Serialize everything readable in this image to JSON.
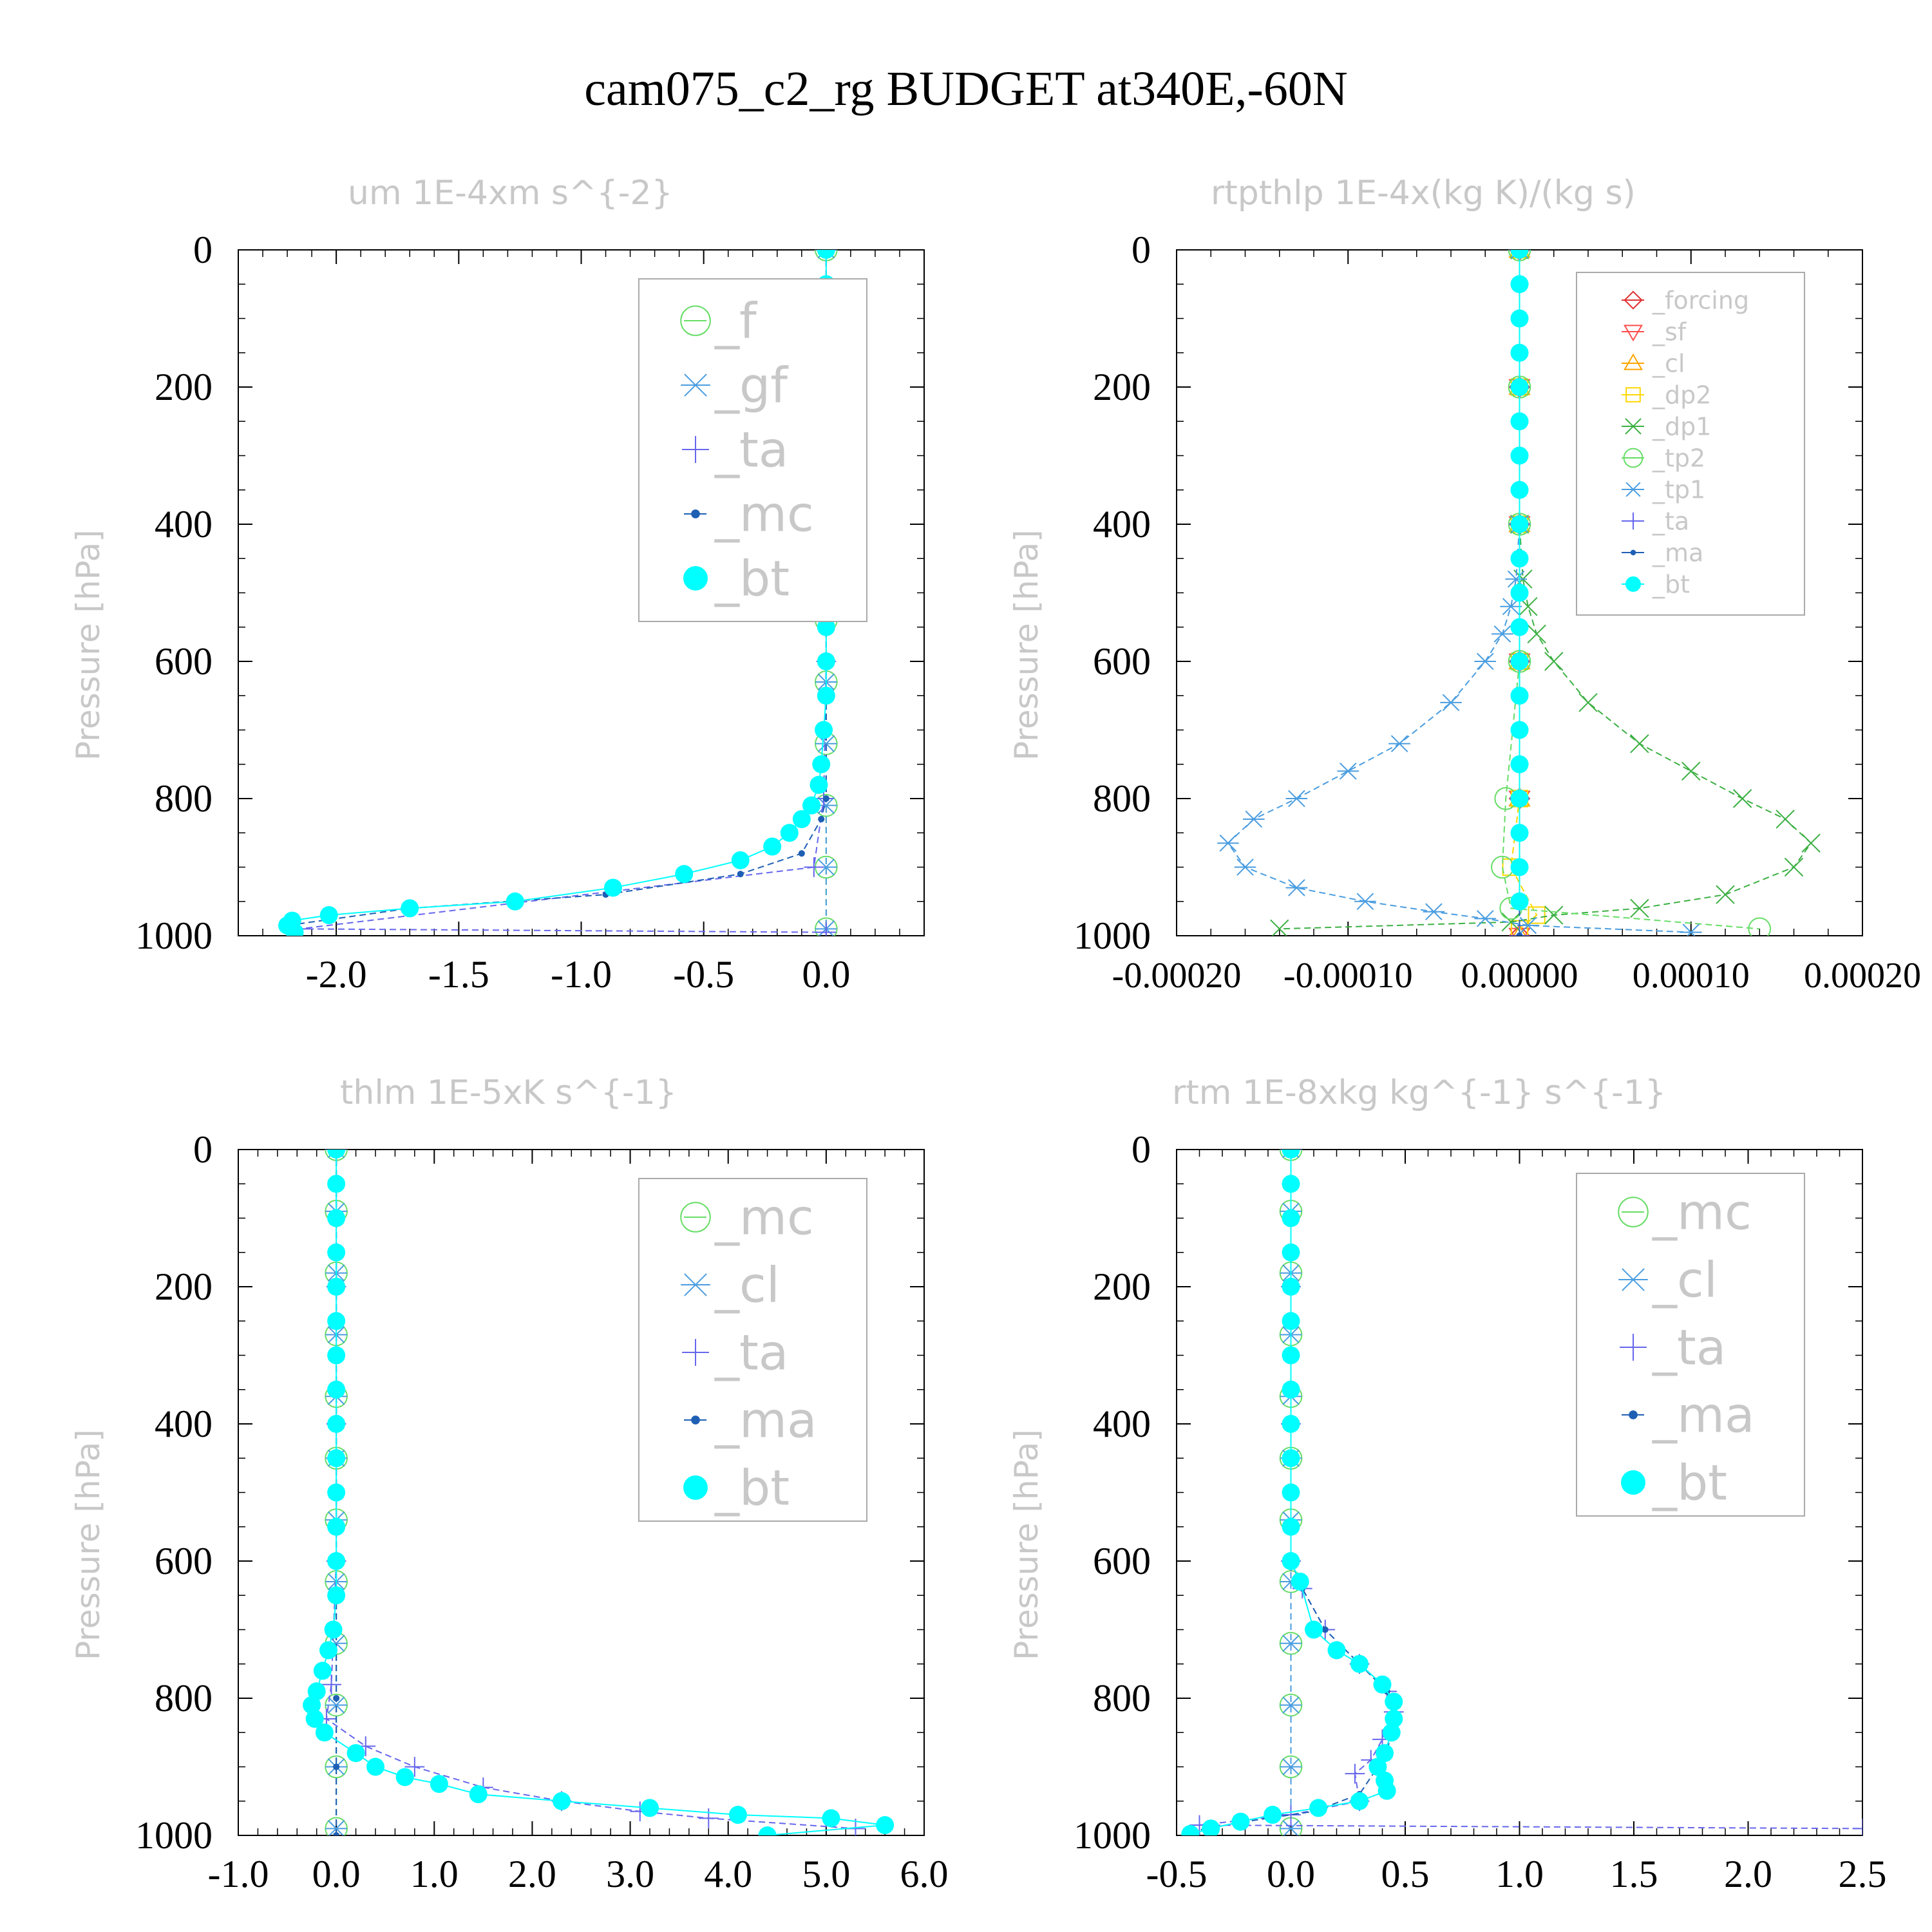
{
  "title": "cam075_c2_rg  BUDGET at340E,-60N",
  "chart_data": [
    {
      "type": "line",
      "title": "um   1E-4xm s^{-2}",
      "ylabel": "Pressure [hPa]",
      "xlim": [
        -2.4,
        0.4
      ],
      "ylim": [
        1000,
        0
      ],
      "xticks": [
        "-2.0",
        "-1.5",
        "-1.0",
        "-0.5",
        "0.0"
      ],
      "xtick_values": [
        -2.0,
        -1.5,
        -1.0,
        -0.5,
        0.0
      ],
      "yticks": [
        "0",
        "200",
        "400",
        "600",
        "800",
        "1000"
      ],
      "legend_position": "top-right",
      "series": [
        {
          "name": "_f",
          "color": "#66dd66",
          "marker": "circle-open",
          "x": [
            0,
            0,
            0,
            0,
            0,
            0,
            0,
            0,
            0,
            0,
            0,
            0
          ],
          "y": [
            0,
            90,
            180,
            270,
            360,
            450,
            540,
            630,
            720,
            810,
            900,
            990
          ]
        },
        {
          "name": "_gf",
          "color": "#4a9de0",
          "marker": "star",
          "x": [
            0,
            0,
            0,
            0,
            0,
            0,
            0,
            0,
            0,
            0,
            0,
            0
          ],
          "y": [
            0,
            90,
            180,
            270,
            360,
            450,
            540,
            630,
            720,
            810,
            900,
            990
          ]
        },
        {
          "name": "_ta",
          "color": "#6666ee",
          "marker": "plus",
          "x": [
            0,
            0,
            0,
            0,
            -0.01,
            -0.05,
            -2.15,
            0
          ],
          "y": [
            0,
            200,
            400,
            600,
            800,
            900,
            990,
            995
          ]
        },
        {
          "name": "_mc",
          "color": "#1e5fb4",
          "marker": "dot",
          "x": [
            0,
            0,
            0,
            0,
            0,
            -0.02,
            -0.1,
            -0.35,
            -0.9,
            -1.7,
            -2.2
          ],
          "y": [
            0,
            200,
            400,
            600,
            800,
            830,
            880,
            910,
            940,
            960,
            985
          ]
        },
        {
          "name": "_bt",
          "color": "#00ffff",
          "marker": "dot-large",
          "x": [
            0,
            0,
            0,
            0,
            0,
            0,
            0,
            0,
            0,
            0,
            0,
            0,
            0,
            0,
            -0.01,
            -0.02,
            -0.03,
            -0.06,
            -0.1,
            -0.15,
            -0.22,
            -0.35,
            -0.58,
            -0.87,
            -1.27,
            -1.7,
            -2.03,
            -2.18,
            -2.2,
            -2.17
          ],
          "y": [
            0,
            50,
            100,
            150,
            200,
            250,
            300,
            350,
            400,
            450,
            500,
            550,
            600,
            650,
            700,
            750,
            780,
            810,
            830,
            850,
            870,
            890,
            910,
            930,
            950,
            960,
            970,
            978,
            985,
            995
          ]
        }
      ]
    },
    {
      "type": "line",
      "title": "rtpthlp   1E-4x(kg K)/(kg s)",
      "ylabel": "Pressure [hPa]",
      "xlim": [
        -0.0002,
        0.0002
      ],
      "ylim": [
        1000,
        0
      ],
      "xticks": [
        "-0.00020",
        "-0.00010",
        "0.00000",
        "0.00010",
        "0.00020"
      ],
      "xtick_values": [
        -0.0002,
        -0.0001,
        0.0,
        0.0001,
        0.0002
      ],
      "yticks": [
        "0",
        "200",
        "400",
        "600",
        "800",
        "1000"
      ],
      "legend_position": "top-right",
      "series": [
        {
          "name": "_forcing",
          "color": "#e03030",
          "marker": "diamond",
          "x": [
            0,
            0,
            0,
            0,
            0,
            0
          ],
          "y": [
            0,
            200,
            400,
            600,
            800,
            1000
          ]
        },
        {
          "name": "_sf",
          "color": "#ff4d4d",
          "marker": "triangle-down",
          "x": [
            0,
            0,
            0,
            0,
            0,
            0
          ],
          "y": [
            0,
            200,
            400,
            600,
            800,
            1000
          ]
        },
        {
          "name": "_cl",
          "color": "#ffa500",
          "marker": "triangle-up",
          "x": [
            0,
            0,
            0,
            0,
            0,
            0
          ],
          "y": [
            0,
            200,
            400,
            600,
            800,
            1000
          ]
        },
        {
          "name": "_dp2",
          "color": "#ffd700",
          "marker": "square",
          "x": [
            0,
            0,
            0,
            0,
            0,
            -5e-06,
            1e-05,
            0
          ],
          "y": [
            0,
            200,
            400,
            600,
            800,
            900,
            970,
            990
          ]
        },
        {
          "name": "_dp1",
          "color": "#3cb043",
          "marker": "x",
          "x": [
            0,
            0,
            2e-06,
            5e-06,
            1e-05,
            2e-05,
            4e-05,
            7e-05,
            0.0001,
            0.00013,
            0.000155,
            0.00017,
            0.00016,
            0.00012,
            7e-05,
            2e-05,
            -5e-06,
            -0.00014
          ],
          "y": [
            0,
            400,
            480,
            520,
            560,
            600,
            660,
            720,
            760,
            800,
            830,
            865,
            900,
            940,
            960,
            970,
            980,
            990
          ]
        },
        {
          "name": "_tp2",
          "color": "#66dd66",
          "marker": "circle-open",
          "x": [
            0,
            0,
            0,
            0,
            -8e-06,
            -1e-05,
            -5e-06,
            0.00014
          ],
          "y": [
            0,
            200,
            400,
            600,
            800,
            900,
            960,
            990
          ]
        },
        {
          "name": "_tp1",
          "color": "#4a9de0",
          "marker": "star",
          "x": [
            0,
            0,
            -2e-06,
            -5e-06,
            -1e-05,
            -2e-05,
            -4e-05,
            -7e-05,
            -0.0001,
            -0.00013,
            -0.000155,
            -0.00017,
            -0.00016,
            -0.00013,
            -9e-05,
            -5e-05,
            -2e-05,
            5e-06,
            0.0001
          ],
          "y": [
            0,
            400,
            480,
            520,
            560,
            600,
            660,
            720,
            760,
            800,
            830,
            865,
            900,
            930,
            950,
            965,
            975,
            985,
            995
          ]
        },
        {
          "name": "_ta",
          "color": "#6666ee",
          "marker": "plus",
          "x": [
            0,
            0,
            0,
            0,
            0,
            0
          ],
          "y": [
            0,
            200,
            400,
            600,
            800,
            1000
          ]
        },
        {
          "name": "_ma",
          "color": "#1e5fb4",
          "marker": "dot",
          "x": [
            0,
            0,
            0,
            0,
            0,
            0
          ],
          "y": [
            0,
            200,
            400,
            600,
            800,
            1000
          ]
        },
        {
          "name": "_bt",
          "color": "#00ffff",
          "marker": "dot-large",
          "x": [
            0,
            0,
            0,
            0,
            0,
            0,
            0,
            0,
            0,
            0,
            0,
            0,
            0,
            0,
            0,
            0,
            0,
            0,
            0,
            0
          ],
          "y": [
            0,
            50,
            100,
            150,
            200,
            250,
            300,
            350,
            400,
            450,
            500,
            550,
            600,
            650,
            700,
            750,
            800,
            850,
            900,
            950
          ]
        }
      ]
    },
    {
      "type": "line",
      "title": "thlm   1E-5xK s^{-1}",
      "ylabel": "Pressure [hPa]",
      "xlim": [
        -1.0,
        6.0
      ],
      "ylim": [
        1000,
        0
      ],
      "xticks": [
        "-1.0",
        "0.0",
        "1.0",
        "2.0",
        "3.0",
        "4.0",
        "5.0",
        "6.0"
      ],
      "xtick_values": [
        -1.0,
        0.0,
        1.0,
        2.0,
        3.0,
        4.0,
        5.0,
        6.0
      ],
      "yticks": [
        "0",
        "200",
        "400",
        "600",
        "800",
        "1000"
      ],
      "legend_position": "top-right",
      "series": [
        {
          "name": "_mc",
          "color": "#66dd66",
          "marker": "circle-open",
          "x": [
            0,
            0,
            0,
            0,
            0,
            0,
            0,
            0,
            0,
            0,
            0,
            0
          ],
          "y": [
            0,
            90,
            180,
            270,
            360,
            450,
            540,
            630,
            720,
            810,
            900,
            990
          ]
        },
        {
          "name": "_cl",
          "color": "#4a9de0",
          "marker": "star",
          "x": [
            0,
            0,
            0,
            0,
            0,
            0,
            0,
            0,
            0,
            0,
            0,
            0
          ],
          "y": [
            0,
            90,
            180,
            270,
            360,
            450,
            540,
            630,
            720,
            810,
            900,
            990
          ]
        },
        {
          "name": "_ta",
          "color": "#6666ee",
          "marker": "plus",
          "x": [
            0,
            0,
            0,
            0,
            -0.05,
            -0.1,
            0.3,
            0.8,
            1.5,
            2.3,
            3.1,
            3.8,
            5.3
          ],
          "y": [
            0,
            200,
            400,
            600,
            780,
            830,
            870,
            900,
            930,
            950,
            965,
            975,
            990
          ]
        },
        {
          "name": "_ma",
          "color": "#1e5fb4",
          "marker": "dot",
          "x": [
            0,
            0,
            0,
            0,
            0,
            0,
            0
          ],
          "y": [
            0,
            200,
            400,
            600,
            800,
            900,
            1000
          ]
        },
        {
          "name": "_bt",
          "color": "#00ffff",
          "marker": "dot-large",
          "x": [
            0,
            0,
            0,
            0,
            0,
            0,
            0,
            0,
            0,
            0,
            0,
            0,
            0,
            0,
            -0.03,
            -0.08,
            -0.14,
            -0.2,
            -0.25,
            -0.22,
            -0.12,
            0.2,
            0.4,
            0.7,
            1.05,
            1.45,
            2.3,
            3.2,
            4.1,
            5.05,
            5.6,
            4.4
          ],
          "y": [
            0,
            50,
            100,
            150,
            200,
            250,
            300,
            350,
            400,
            450,
            500,
            550,
            600,
            650,
            700,
            730,
            760,
            790,
            810,
            830,
            850,
            880,
            900,
            915,
            925,
            940,
            950,
            960,
            970,
            975,
            985,
            1000
          ]
        }
      ]
    },
    {
      "type": "line",
      "title": "rtm   1E-8xkg kg^{-1} s^{-1}",
      "ylabel": "Pressure [hPa]",
      "xlim": [
        -0.5,
        2.5
      ],
      "ylim": [
        1000,
        0
      ],
      "xticks": [
        "-0.5",
        "0.0",
        "0.5",
        "1.0",
        "1.5",
        "2.0",
        "2.5"
      ],
      "xtick_values": [
        -0.5,
        0.0,
        0.5,
        1.0,
        1.5,
        2.0,
        2.5
      ],
      "yticks": [
        "0",
        "200",
        "400",
        "600",
        "800",
        "1000"
      ],
      "legend_position": "top-right",
      "series": [
        {
          "name": "_mc",
          "color": "#66dd66",
          "marker": "circle-open",
          "x": [
            0,
            0,
            0,
            0,
            0,
            0,
            0,
            0,
            0,
            0,
            0,
            0
          ],
          "y": [
            0,
            90,
            180,
            270,
            360,
            450,
            540,
            630,
            720,
            810,
            900,
            990
          ]
        },
        {
          "name": "_cl",
          "color": "#4a9de0",
          "marker": "star",
          "x": [
            0,
            0,
            0,
            0,
            0,
            0,
            0,
            0,
            0,
            0,
            0,
            0
          ],
          "y": [
            0,
            90,
            180,
            270,
            360,
            450,
            540,
            630,
            720,
            810,
            900,
            990
          ]
        },
        {
          "name": "_ta",
          "color": "#6666ee",
          "marker": "plus",
          "x": [
            0,
            0,
            0,
            0,
            0.05,
            0.15,
            0.3,
            0.42,
            0.45,
            0.4,
            0.35,
            0.28,
            0.3,
            0.0,
            -0.4,
            2.5
          ],
          "y": [
            0,
            200,
            400,
            600,
            640,
            700,
            750,
            790,
            820,
            860,
            890,
            910,
            950,
            970,
            985,
            990
          ]
        },
        {
          "name": "_ma",
          "color": "#1e5fb4",
          "marker": "dot",
          "x": [
            0,
            0,
            0,
            0,
            0.05,
            0.15,
            0.3,
            0.42,
            0.45,
            0.42,
            0.3,
            0.1,
            -0.2,
            -0.45
          ],
          "y": [
            0,
            200,
            400,
            600,
            640,
            700,
            750,
            790,
            830,
            880,
            940,
            965,
            980,
            995
          ]
        },
        {
          "name": "_bt",
          "color": "#00ffff",
          "marker": "dot-large",
          "x": [
            0,
            0,
            0,
            0,
            0,
            0,
            0,
            0,
            0,
            0,
            0,
            0,
            0,
            0.04,
            0.1,
            0.2,
            0.3,
            0.4,
            0.45,
            0.45,
            0.44,
            0.41,
            0.38,
            0.41,
            0.42,
            0.3,
            0.12,
            -0.08,
            -0.22,
            -0.35,
            -0.44
          ],
          "y": [
            0,
            50,
            100,
            150,
            200,
            250,
            300,
            350,
            400,
            450,
            500,
            550,
            600,
            630,
            700,
            730,
            750,
            780,
            805,
            830,
            850,
            880,
            900,
            920,
            935,
            950,
            960,
            970,
            980,
            990,
            998
          ]
        }
      ]
    }
  ]
}
